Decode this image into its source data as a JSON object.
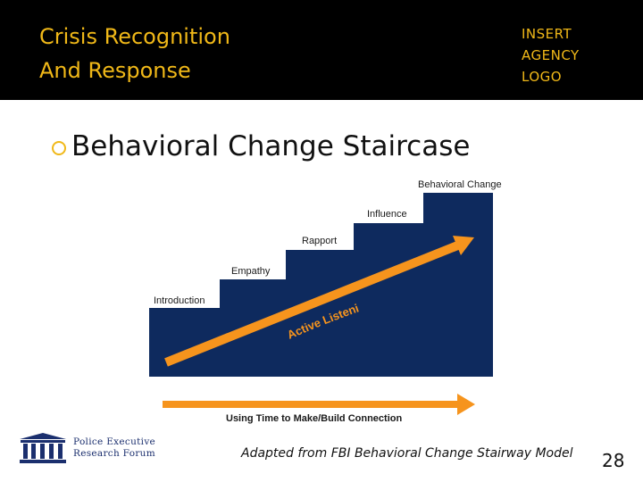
{
  "header": {
    "title_line1": "Crisis Recognition",
    "title_line2": "And Response",
    "logo_line1": "INSERT",
    "logo_line2": "AGENCY",
    "logo_line3": "LOGO"
  },
  "heading": "Behavioral Change Staircase",
  "diagram": {
    "steps": [
      "Introduction",
      "Empathy",
      "Rapport",
      "Influence",
      "Behavioral Change"
    ],
    "arrow_label": "Active Listening",
    "time_label": "Using Time to Make/Build Connection"
  },
  "caption": "Adapted from FBI Behavioral Change Stairway Model",
  "footer_logo": {
    "line1": "Police Executive",
    "line2": "Research Forum"
  },
  "page_number": "28",
  "colors": {
    "header_bg": "#000000",
    "title": "#f0b818",
    "staircase": "#0e2a5e",
    "arrow": "#f6941d"
  }
}
